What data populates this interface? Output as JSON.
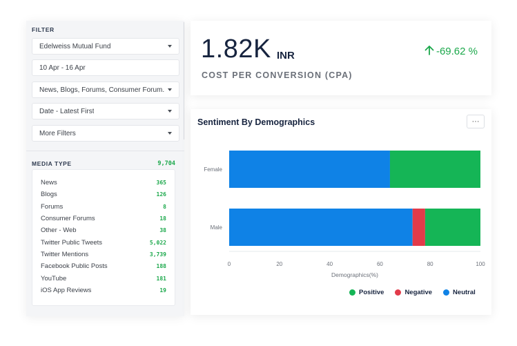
{
  "filter": {
    "title": "FILTER",
    "fund": "Edelweiss Mutual Fund",
    "date_range": "10 Apr - 16 Apr",
    "sources": "News, Blogs, Forums, Consumer Forum...",
    "sort": "Date - Latest First",
    "more": "More Filters"
  },
  "media_type": {
    "title": "MEDIA TYPE",
    "total": "9,704",
    "items": [
      {
        "label": "News",
        "count": "365"
      },
      {
        "label": "Blogs",
        "count": "126"
      },
      {
        "label": "Forums",
        "count": "8"
      },
      {
        "label": "Consumer Forums",
        "count": "18"
      },
      {
        "label": "Other - Web",
        "count": "38"
      },
      {
        "label": "Twitter Public Tweets",
        "count": "5,022"
      },
      {
        "label": "Twitter Mentions",
        "count": "3,739"
      },
      {
        "label": "Facebook Public Posts",
        "count": "188"
      },
      {
        "label": "YouTube",
        "count": "181"
      },
      {
        "label": "iOS App Reviews",
        "count": "19"
      }
    ]
  },
  "kpi": {
    "value": "1.82K",
    "unit": "INR",
    "change": "-69.62 %",
    "label": "COST PER CONVERSION (CPA)",
    "change_color": "#1ba84b"
  },
  "chart_card": {
    "title": "Sentiment By Demographics",
    "more_label": "···"
  },
  "chart_data": {
    "type": "bar",
    "orientation": "horizontal",
    "stacked": true,
    "categories": [
      "Female",
      "Male"
    ],
    "series": [
      {
        "name": "Neutral",
        "color": "#0f82e6",
        "values": [
          64,
          73
        ]
      },
      {
        "name": "Negative",
        "color": "#e23b4a",
        "values": [
          0,
          5
        ]
      },
      {
        "name": "Positive",
        "color": "#15b556",
        "values": [
          36,
          22
        ]
      }
    ],
    "xlabel": "Demographics(%)",
    "ylabel": "",
    "xlim": [
      0,
      100
    ],
    "xticks": [
      0,
      20,
      40,
      60,
      80,
      100
    ],
    "legend": [
      {
        "name": "Positive",
        "color": "#15b556"
      },
      {
        "name": "Negative",
        "color": "#e23b4a"
      },
      {
        "name": "Neutral",
        "color": "#0f82e6"
      }
    ],
    "legend_position": "bottom-right",
    "grid": false
  }
}
